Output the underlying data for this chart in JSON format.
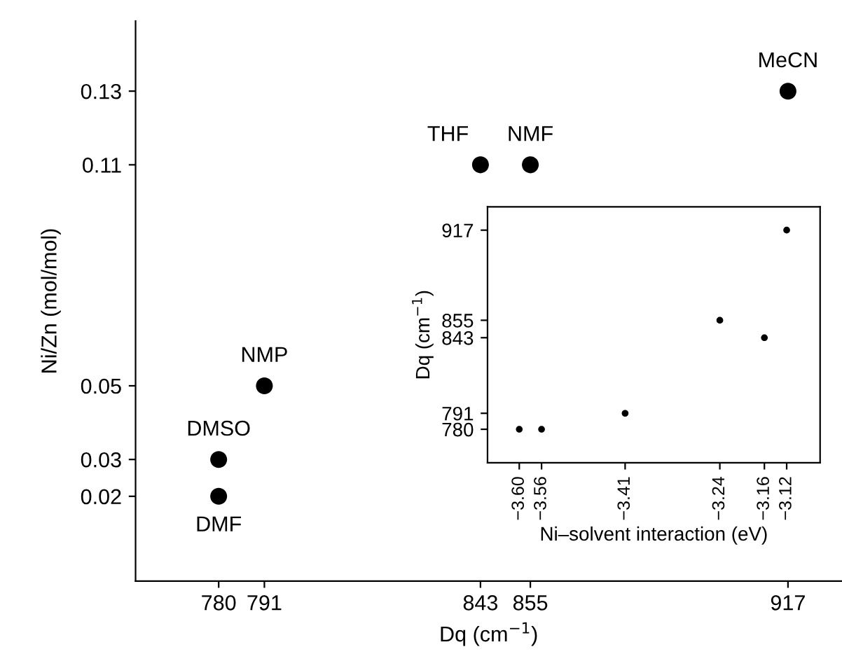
{
  "chart_data": [
    {
      "type": "scatter",
      "xlabel": "Dq (cm$^{−1}$)",
      "ylabel": "Ni/Zn (mol/mol)",
      "x": [
        780,
        780,
        791,
        843,
        855,
        917
      ],
      "values": [
        0.02,
        0.03,
        0.05,
        0.11,
        0.11,
        0.13
      ],
      "color": "#000000",
      "marker": "circle",
      "xlim": [
        760,
        930
      ],
      "ylim": [
        -0.003,
        0.149
      ],
      "xticks": [
        780,
        791,
        843,
        855,
        917
      ],
      "yticks": [
        0.02,
        0.03,
        0.05,
        0.11,
        0.13
      ],
      "grid": false,
      "annotations": [
        {
          "text": "DMF",
          "x": 780,
          "y": 0.02
        },
        {
          "text": "DMSO",
          "x": 780,
          "y": 0.03
        },
        {
          "text": "NMP",
          "x": 791,
          "y": 0.05
        },
        {
          "text": "THF",
          "x": 843,
          "y": 0.11
        },
        {
          "text": "NMF",
          "x": 855,
          "y": 0.11
        },
        {
          "text": "MeCN",
          "x": 917,
          "y": 0.13
        }
      ]
    },
    {
      "type": "scatter",
      "xlabel": "Ni–solvent interaction (eV)",
      "ylabel": "Dq (cm$^{−1}$)",
      "x": [
        -3.6,
        -3.56,
        -3.41,
        -3.24,
        -3.16,
        -3.12
      ],
      "values": [
        780,
        780,
        791,
        855,
        843,
        917
      ],
      "color": "#000000",
      "marker": "circle",
      "xlim": [
        -3.657,
        -3.06
      ],
      "ylim": [
        757,
        933
      ],
      "xticks": [
        {
          "value": -3.6,
          "label": "−3.60"
        },
        {
          "value": -3.56,
          "label": "−3.56"
        },
        {
          "value": -3.41,
          "label": "−3.41"
        },
        {
          "value": -3.24,
          "label": "−3.24"
        },
        {
          "value": -3.16,
          "label": "−3.16"
        },
        {
          "value": -3.12,
          "label": "−3.12"
        }
      ],
      "yticks": [
        780,
        791,
        843,
        855,
        917
      ],
      "grid": false
    }
  ]
}
